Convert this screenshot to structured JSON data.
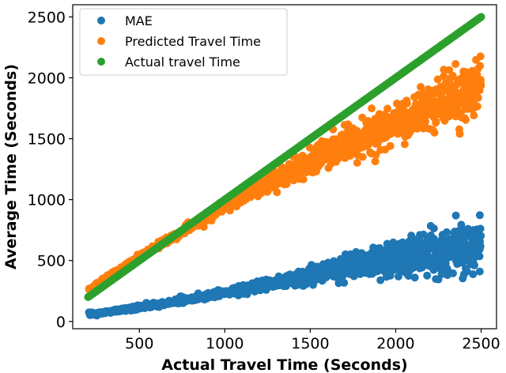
{
  "chart_data": {
    "type": "scatter",
    "title": "",
    "xlabel": "Actual Travel Time (Seconds)",
    "ylabel": "Average Time (Seconds)",
    "xlim": [
      110,
      2590
    ],
    "ylim": [
      -60,
      2600
    ],
    "xticks": [
      500,
      1000,
      1500,
      2000,
      2500
    ],
    "yticks": [
      0,
      500,
      1000,
      1500,
      2000,
      2500
    ],
    "grid": false,
    "legend_position": "top-left",
    "series": [
      {
        "name": "MAE",
        "color": "#1f77b4",
        "x": [
          200,
          300,
          400,
          500,
          600,
          700,
          800,
          900,
          1000,
          1100,
          1200,
          1300,
          1400,
          1500,
          1600,
          1700,
          1800,
          1900,
          2000,
          2100,
          2200,
          2300,
          2400,
          2500
        ],
        "y": [
          60,
          75,
          95,
          115,
          135,
          160,
          185,
          210,
          235,
          260,
          285,
          315,
          345,
          380,
          410,
          440,
          470,
          495,
          520,
          545,
          560,
          580,
          610,
          640
        ],
        "spread": [
          10,
          12,
          15,
          18,
          20,
          22,
          25,
          28,
          30,
          35,
          40,
          45,
          55,
          65,
          75,
          85,
          95,
          110,
          125,
          140,
          160,
          180,
          200,
          220
        ]
      },
      {
        "name": "Predicted Travel Time",
        "color": "#ff7f0e",
        "x": [
          200,
          300,
          400,
          500,
          600,
          700,
          800,
          900,
          1000,
          1100,
          1200,
          1300,
          1400,
          1500,
          1600,
          1700,
          1800,
          1900,
          2000,
          2100,
          2200,
          2300,
          2400,
          2500
        ],
        "y": [
          260,
          350,
          440,
          530,
          615,
          700,
          780,
          860,
          945,
          1020,
          1100,
          1170,
          1240,
          1310,
          1380,
          1450,
          1510,
          1570,
          1630,
          1690,
          1750,
          1800,
          1860,
          1920
        ],
        "spread": [
          15,
          18,
          20,
          25,
          28,
          30,
          35,
          40,
          45,
          55,
          65,
          75,
          85,
          95,
          105,
          120,
          135,
          150,
          165,
          180,
          200,
          215,
          235,
          260
        ]
      },
      {
        "name": "Actual travel Time",
        "color": "#2ca02c",
        "x": [
          200,
          2500
        ],
        "y": [
          200,
          2500
        ],
        "spread": [
          0,
          0
        ]
      }
    ]
  }
}
